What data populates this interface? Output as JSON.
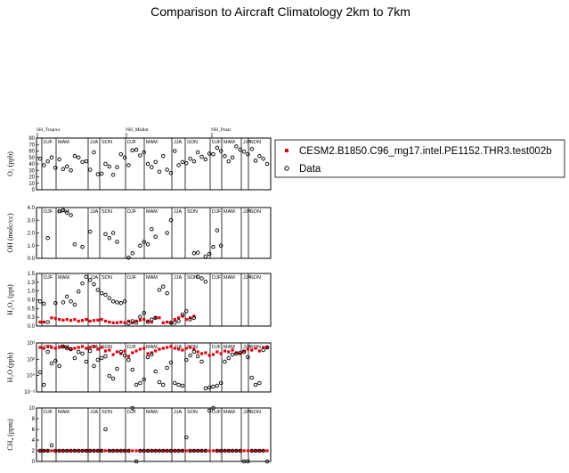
{
  "chart_data": {
    "type": "scatter",
    "title": "Comparison to Aircraft Climatology  2km to 7km",
    "legend": {
      "placement": "right",
      "model_label": "CESM2.B1850.C96_mg17.intel.PE1152.THR3.test002b",
      "data_label": "Data",
      "model_color": "#e3000f",
      "data_color": "#000000"
    },
    "regions": [
      "SH_Tropics",
      "NH_Midlat",
      "NH_Polar"
    ],
    "seasons": [
      "DJF",
      "MAM",
      "JJA",
      "SON"
    ],
    "n_points": 60,
    "panels": [
      {
        "ylabel": "O₃ (ppb)",
        "ylim": [
          0,
          80
        ],
        "scale": "linear",
        "ytick_labels": [
          "0",
          "10",
          "20",
          "30",
          "40",
          "50",
          "60",
          "70",
          "80"
        ],
        "data": [
          48,
          38,
          44,
          50,
          34,
          47,
          32,
          36,
          30,
          52,
          50,
          43,
          44,
          31,
          58,
          24,
          25,
          40,
          36,
          23,
          35,
          55,
          50,
          38,
          61,
          62,
          53,
          58,
          40,
          35,
          43,
          28,
          52,
          31,
          26,
          60,
          38,
          43,
          41,
          48,
          44,
          58,
          51,
          47,
          56,
          55,
          65,
          60,
          52,
          44,
          50,
          67,
          62,
          59,
          55,
          63,
          45,
          52,
          48,
          40
        ],
        "model": []
      },
      {
        "ylabel": "OH (molc/cc)",
        "ylim": [
          0,
          4
        ],
        "scale": "linear",
        "ytick_labels": [
          "0.0",
          "1.0",
          "2.0",
          "3.0",
          "4.0"
        ],
        "data": [
          null,
          null,
          1.6,
          null,
          null,
          3.7,
          3.8,
          3.6,
          3.4,
          1.1,
          null,
          0.9,
          null,
          2.1,
          null,
          null,
          null,
          1.9,
          1.6,
          2.0,
          1.3,
          null,
          null,
          0.05,
          0.4,
          null,
          1.0,
          1.3,
          1.1,
          2.3,
          1.7,
          null,
          null,
          2.0,
          3.0,
          null,
          null,
          null,
          null,
          null,
          0.4,
          0.45,
          null,
          0.15,
          0.35,
          0.9,
          2.2,
          1.0,
          null,
          null,
          null,
          null,
          null,
          null,
          null,
          null,
          null,
          null,
          null,
          null
        ],
        "model": []
      },
      {
        "ylabel": "H₂O₂ (ppt)",
        "ylim": [
          0,
          1.6
        ],
        "scale": "linear",
        "ytick_labels": [
          "0.0",
          "0.3",
          "0.5",
          "0.8",
          "1.0",
          "1.3",
          "1.5"
        ],
        "data": [
          0.75,
          0.68,
          0.12,
          null,
          0.7,
          null,
          0.72,
          0.9,
          0.75,
          0.65,
          1.05,
          1.3,
          1.5,
          1.4,
          1.27,
          1.1,
          1.0,
          0.95,
          0.85,
          0.75,
          0.72,
          0.7,
          0.75,
          0.08,
          0.15,
          0.1,
          0.28,
          0.4,
          0.12,
          0.2,
          0.25,
          1.1,
          1.2,
          1.0,
          0.1,
          0.1,
          0.15,
          0.35,
          0.45,
          0.2,
          0.25,
          1.5,
          1.45,
          1.35,
          null,
          null,
          null,
          null,
          null,
          null,
          null,
          null,
          null,
          null,
          null,
          null,
          null,
          null,
          null,
          null
        ],
        "model": [
          0.12,
          0.12,
          null,
          0.25,
          0.23,
          0.2,
          0.18,
          0.2,
          0.17,
          0.2,
          0.15,
          0.17,
          0.2,
          0.15,
          0.17,
          0.18,
          0.2,
          0.15,
          0.12,
          0.1,
          0.1,
          0.12,
          0.1,
          0.15,
          0.1,
          0.15,
          0.18,
          0.2,
          0.15,
          0.12,
          0.25,
          0.25,
          0.1,
          0.12,
          0.1,
          0.2,
          0.25,
          0.3,
          0.2,
          0.25,
          0.3,
          null,
          null,
          null,
          null,
          null,
          null,
          null,
          null,
          null,
          null,
          null,
          null,
          null,
          null,
          null,
          null,
          null,
          null,
          null
        ],
        "model_only": true
      },
      {
        "ylabel": "H₂O (ppb)",
        "ylim": [
          -2,
          3.5
        ],
        "scale": "log",
        "ytick_labels": [
          "10⁻²",
          "10⁰",
          "10²",
          "10³"
        ],
        "data": [
          0.2,
          -1.2,
          2.5,
          1.2,
          1.5,
          0.9,
          3.1,
          2.9,
          2.8,
          1.8,
          2.5,
          2.3,
          1.4,
          2.6,
          0.9,
          1.6,
          1.8,
          2.0,
          -0.2,
          -0.5,
          0.6,
          2.5,
          2.1,
          1.6,
          0.5,
          -1.2,
          -1.0,
          -0.6,
          1.9,
          2.2,
          0.3,
          -0.9,
          -1.2,
          0.7,
          1.3,
          -1.0,
          -1.2,
          -1.3,
          1.6,
          2.1,
          2.5,
          2.0,
          1.4,
          -1.6,
          -1.5,
          -1.4,
          -1.3,
          -1.0,
          1.4,
          1.8,
          2.2,
          2.3,
          2.4,
          2.5,
          1.9,
          -0.4,
          -1.2,
          -1.0,
          2.7,
          3.0
        ],
        "model": [
          3.0,
          2.9,
          3.1,
          3.0,
          2.9,
          3.0,
          3.1,
          3.0,
          2.8,
          2.9,
          3.0,
          3.1,
          2.9,
          3.0,
          3.1,
          2.8,
          3.0,
          2.6,
          2.7,
          2.2,
          2.5,
          2.3,
          2.6,
          2.0,
          2.4,
          2.6,
          2.8,
          2.9,
          2.3,
          2.4,
          2.6,
          2.8,
          2.9,
          3.0,
          3.1,
          2.9,
          2.8,
          2.7,
          2.9,
          3.0,
          2.8,
          2.5,
          2.3,
          2.4,
          2.1,
          2.2,
          2.5,
          2.3,
          2.6,
          2.5,
          2.7,
          2.4,
          2.3,
          2.6,
          2.8,
          2.7,
          2.9,
          2.6,
          3.0,
          3.0
        ]
      },
      {
        "ylabel": "CH₄ (ppm)",
        "ylim": [
          0,
          10
        ],
        "scale": "linear",
        "ytick_labels": [
          "0",
          "2",
          "4",
          "6",
          "8",
          "10"
        ],
        "data": [
          2,
          2,
          2,
          3,
          2,
          2,
          2,
          2,
          2,
          2,
          2,
          2,
          2,
          2,
          2,
          2,
          2,
          6,
          2,
          2,
          2,
          2,
          2,
          2,
          10,
          0,
          2,
          2,
          2,
          2,
          2,
          2,
          2,
          2,
          2,
          2,
          2,
          2,
          4.5,
          2,
          2,
          2,
          2,
          2,
          9.5,
          10,
          2,
          2,
          2,
          2,
          2,
          2,
          2,
          0,
          0,
          2,
          2,
          2,
          2,
          0
        ],
        "model": [
          2,
          2,
          2,
          2,
          2,
          2,
          2,
          2,
          2,
          2,
          2,
          2,
          2,
          2,
          2,
          2,
          2,
          2,
          2,
          2,
          2,
          2,
          2,
          2,
          2,
          2,
          2,
          2,
          2,
          2,
          2,
          2,
          2,
          2,
          2,
          2,
          2,
          2,
          2,
          2,
          2,
          2,
          2,
          2,
          2,
          2,
          2,
          2,
          2,
          2,
          2,
          2,
          2,
          2,
          2,
          2,
          2,
          2,
          2,
          2
        ]
      }
    ]
  }
}
